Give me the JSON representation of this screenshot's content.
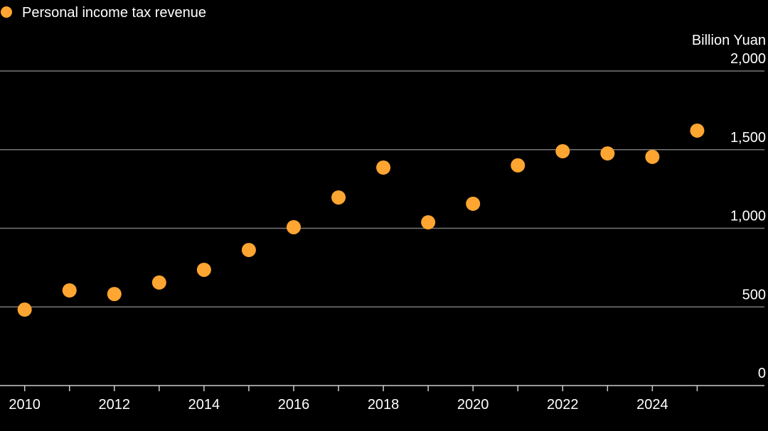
{
  "chart_data": {
    "type": "scatter",
    "series": [
      {
        "name": "Personal income tax revenue",
        "color": "#ffa531",
        "x": [
          2010,
          2011,
          2012,
          2013,
          2014,
          2015,
          2016,
          2017,
          2018,
          2019,
          2020,
          2021,
          2022,
          2023,
          2024,
          2025
        ],
        "values": [
          483,
          605,
          582,
          655,
          736,
          862,
          1007,
          1196,
          1386,
          1038,
          1156,
          1400,
          1490,
          1476,
          1454,
          1621
        ]
      }
    ],
    "y_unit_label": "Billion Yuan",
    "xlim": [
      2009.45,
      2026.5
    ],
    "xticks": [
      2010,
      2012,
      2014,
      2016,
      2018,
      2020,
      2022,
      2024
    ],
    "xminor_ticks": [
      2011,
      2013,
      2015,
      2017,
      2019,
      2021,
      2023,
      2025
    ],
    "ylim": [
      0,
      2000
    ],
    "yticks": [
      0,
      500,
      {
        "value": 1000,
        "label": "1,000"
      },
      {
        "value": 1500,
        "label": "1,500"
      },
      {
        "value": 2000,
        "label": "2,000"
      }
    ],
    "grid": true,
    "legend": "top-left"
  }
}
